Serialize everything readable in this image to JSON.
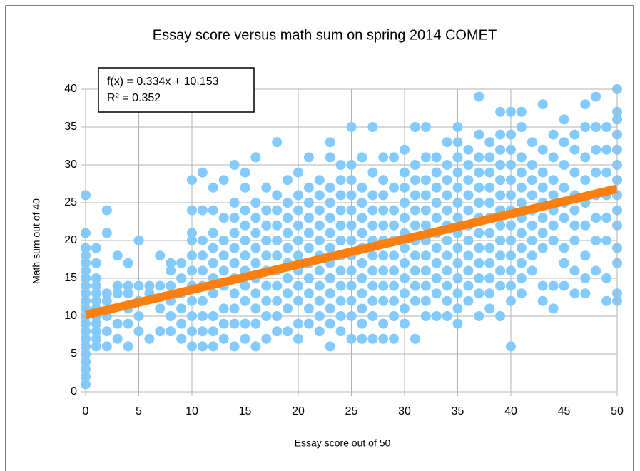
{
  "chart_data": {
    "type": "scatter",
    "title": "Essay score versus math sum on spring 2014 COMET",
    "x_label": "Essay score out of 50",
    "y_label": "Math sum out of 40",
    "annotations": [
      "f(x) = 0.334x + 10.153",
      "R² = 0.352"
    ],
    "xlim": [
      0,
      50
    ],
    "xticks": [
      0,
      5,
      10,
      15,
      20,
      25,
      30,
      35,
      40,
      45,
      50
    ],
    "ylim": [
      0,
      40
    ],
    "yticks": [
      0,
      5,
      10,
      15,
      20,
      25,
      30,
      35,
      40
    ],
    "grid": true,
    "series": [
      {
        "color": "#83caff",
        "x": [
          0,
          0,
          0,
          0,
          0,
          0,
          0,
          0,
          0,
          0,
          0,
          0,
          0,
          0,
          0,
          0,
          0,
          0,
          0,
          0,
          0,
          1,
          1,
          1,
          1,
          1,
          1,
          1,
          1,
          1,
          1,
          1,
          1,
          2,
          2,
          2,
          2,
          2,
          2,
          2,
          3,
          3,
          3,
          3,
          3,
          4,
          4,
          4,
          4,
          4,
          4,
          5,
          5,
          5,
          5,
          5,
          6,
          6,
          6,
          7,
          7,
          7,
          7,
          8,
          8,
          8,
          8,
          8,
          8,
          9,
          9,
          9,
          9,
          9,
          9,
          10,
          10,
          10,
          10,
          10,
          10,
          10,
          10,
          10,
          10,
          10,
          11,
          11,
          11,
          11,
          11,
          11,
          11,
          11,
          11,
          11,
          12,
          12,
          12,
          12,
          12,
          12,
          12,
          12,
          12,
          12,
          13,
          13,
          13,
          13,
          13,
          13,
          13,
          13,
          13,
          14,
          14,
          14,
          14,
          14,
          14,
          14,
          14,
          14,
          14,
          14,
          15,
          15,
          15,
          15,
          15,
          15,
          15,
          15,
          15,
          15,
          15,
          16,
          16,
          16,
          16,
          16,
          16,
          16,
          16,
          16,
          16,
          16,
          17,
          17,
          17,
          17,
          17,
          17,
          17,
          17,
          17,
          17,
          18,
          18,
          18,
          18,
          18,
          18,
          18,
          18,
          18,
          18,
          18,
          19,
          19,
          19,
          19,
          19,
          19,
          19,
          19,
          19,
          19,
          20,
          20,
          20,
          20,
          20,
          20,
          20,
          20,
          20,
          20,
          20,
          21,
          21,
          21,
          21,
          21,
          21,
          21,
          21,
          21,
          21,
          21,
          22,
          22,
          22,
          22,
          22,
          22,
          22,
          22,
          22,
          22,
          22,
          23,
          23,
          23,
          23,
          23,
          23,
          23,
          23,
          23,
          23,
          23,
          23,
          23,
          24,
          24,
          24,
          24,
          24,
          24,
          24,
          24,
          24,
          24,
          24,
          24,
          25,
          25,
          25,
          25,
          25,
          25,
          25,
          25,
          25,
          25,
          25,
          25,
          25,
          26,
          26,
          26,
          26,
          26,
          26,
          26,
          26,
          26,
          26,
          26,
          26,
          27,
          27,
          27,
          27,
          27,
          27,
          27,
          27,
          27,
          27,
          27,
          27,
          28,
          28,
          28,
          28,
          28,
          28,
          28,
          28,
          28,
          28,
          28,
          28,
          29,
          29,
          29,
          29,
          29,
          29,
          29,
          29,
          29,
          29,
          29,
          30,
          30,
          30,
          30,
          30,
          30,
          30,
          30,
          30,
          30,
          30,
          30,
          31,
          31,
          31,
          31,
          31,
          31,
          31,
          31,
          31,
          31,
          31,
          31,
          32,
          32,
          32,
          32,
          32,
          32,
          32,
          32,
          32,
          32,
          32,
          32,
          33,
          33,
          33,
          33,
          33,
          33,
          33,
          33,
          33,
          33,
          33,
          34,
          34,
          34,
          34,
          34,
          34,
          34,
          34,
          34,
          34,
          34,
          34,
          35,
          35,
          35,
          35,
          35,
          35,
          35,
          35,
          35,
          35,
          35,
          35,
          35,
          35,
          36,
          36,
          36,
          36,
          36,
          36,
          36,
          36,
          36,
          36,
          36,
          37,
          37,
          37,
          37,
          37,
          37,
          37,
          37,
          37,
          37,
          37,
          37,
          37,
          38,
          38,
          38,
          38,
          38,
          38,
          38,
          38,
          38,
          38,
          38,
          38,
          39,
          39,
          39,
          39,
          39,
          39,
          39,
          39,
          39,
          39,
          39,
          39,
          39,
          40,
          40,
          40,
          40,
          40,
          40,
          40,
          40,
          40,
          40,
          40,
          40,
          40,
          40,
          41,
          41,
          41,
          41,
          41,
          41,
          41,
          41,
          41,
          41,
          41,
          41,
          42,
          42,
          42,
          42,
          42,
          42,
          42,
          42,
          42,
          43,
          43,
          43,
          43,
          43,
          43,
          43,
          43,
          43,
          43,
          44,
          44,
          44,
          44,
          44,
          44,
          44,
          44,
          44,
          45,
          45,
          45,
          45,
          45,
          45,
          45,
          45,
          45,
          46,
          46,
          46,
          46,
          46,
          46,
          46,
          46,
          46,
          47,
          47,
          47,
          47,
          47,
          47,
          47,
          47,
          47,
          48,
          48,
          48,
          48,
          48,
          48,
          48,
          48,
          49,
          49,
          49,
          49,
          49,
          49,
          49,
          49,
          50,
          50,
          50,
          50,
          50,
          50,
          50,
          50,
          50,
          50,
          50,
          50,
          50,
          50
        ],
        "values": [
          1,
          2,
          3,
          4,
          5,
          6,
          7,
          8,
          9,
          10,
          11,
          12,
          13,
          14,
          15,
          16,
          17,
          18,
          19,
          21,
          26,
          6,
          7,
          8,
          9,
          10,
          11,
          12,
          13,
          14,
          15,
          17,
          19,
          6,
          8,
          10,
          12,
          13,
          21,
          24,
          7,
          9,
          13,
          14,
          18,
          6,
          9,
          11,
          13,
          14,
          17,
          8,
          10,
          12,
          14,
          20,
          7,
          13,
          14,
          8,
          11,
          14,
          18,
          8,
          10,
          12,
          14,
          16,
          17,
          7,
          9,
          11,
          13,
          15,
          17,
          6,
          8,
          10,
          12,
          14,
          16,
          18,
          20,
          21,
          24,
          28,
          6,
          8,
          10,
          12,
          14,
          16,
          18,
          20,
          24,
          29,
          6,
          8,
          10,
          13,
          15,
          17,
          19,
          21,
          24,
          27,
          7,
          9,
          11,
          14,
          16,
          18,
          20,
          23,
          28,
          6,
          9,
          11,
          13,
          15,
          17,
          19,
          21,
          23,
          25,
          30,
          7,
          9,
          12,
          14,
          16,
          18,
          20,
          22,
          24,
          27,
          29,
          6,
          9,
          11,
          13,
          15,
          17,
          19,
          21,
          23,
          25,
          31,
          7,
          10,
          12,
          14,
          16,
          18,
          20,
          22,
          24,
          27,
          8,
          10,
          12,
          14,
          16,
          18,
          20,
          22,
          24,
          26,
          33,
          8,
          11,
          13,
          15,
          17,
          19,
          21,
          23,
          25,
          28,
          7,
          9,
          12,
          14,
          16,
          18,
          20,
          22,
          24,
          26,
          29,
          9,
          11,
          13,
          15,
          17,
          19,
          21,
          23,
          25,
          27,
          31,
          8,
          10,
          12,
          14,
          16,
          18,
          20,
          22,
          24,
          26,
          28,
          6,
          9,
          11,
          13,
          15,
          17,
          19,
          21,
          23,
          25,
          27,
          31,
          33,
          8,
          10,
          12,
          14,
          16,
          18,
          20,
          22,
          24,
          26,
          28,
          30,
          7,
          10,
          12,
          14,
          16,
          18,
          20,
          22,
          24,
          26,
          28,
          30,
          35,
          7,
          9,
          11,
          13,
          15,
          17,
          19,
          21,
          23,
          25,
          27,
          31,
          7,
          10,
          12,
          14,
          16,
          18,
          20,
          22,
          24,
          26,
          29,
          35,
          7,
          9,
          12,
          14,
          16,
          18,
          20,
          22,
          24,
          26,
          28,
          31,
          7,
          10,
          12,
          14,
          16,
          18,
          20,
          22,
          24,
          27,
          31,
          9,
          11,
          13,
          15,
          17,
          19,
          21,
          23,
          25,
          27,
          29,
          32,
          7,
          12,
          14,
          16,
          18,
          20,
          22,
          24,
          26,
          28,
          30,
          35,
          10,
          12,
          14,
          16,
          18,
          20,
          22,
          24,
          26,
          28,
          31,
          35,
          10,
          13,
          15,
          17,
          19,
          21,
          23,
          25,
          27,
          29,
          31,
          10,
          12,
          14,
          16,
          18,
          20,
          22,
          24,
          26,
          28,
          30,
          33,
          9,
          11,
          13,
          15,
          17,
          19,
          21,
          23,
          25,
          27,
          29,
          31,
          33,
          35,
          12,
          14,
          16,
          18,
          20,
          22,
          24,
          26,
          28,
          30,
          32,
          10,
          13,
          15,
          17,
          19,
          21,
          23,
          25,
          27,
          29,
          31,
          34,
          39,
          11,
          13,
          15,
          17,
          19,
          21,
          23,
          25,
          27,
          29,
          31,
          33,
          10,
          14,
          16,
          18,
          20,
          22,
          24,
          26,
          28,
          30,
          32,
          34,
          37,
          6,
          12,
          14,
          16,
          18,
          20,
          22,
          24,
          26,
          28,
          30,
          32,
          34,
          37,
          13,
          15,
          17,
          19,
          21,
          23,
          25,
          27,
          29,
          31,
          35,
          37,
          16,
          18,
          20,
          22,
          24,
          26,
          28,
          30,
          33,
          12,
          14,
          19,
          21,
          23,
          25,
          27,
          29,
          32,
          38,
          11,
          14,
          20,
          22,
          24,
          26,
          28,
          31,
          34,
          14,
          17,
          19,
          23,
          25,
          27,
          30,
          33,
          36,
          13,
          16,
          20,
          22,
          24,
          26,
          29,
          32,
          34,
          13,
          15,
          18,
          22,
          25,
          28,
          31,
          35,
          38,
          16,
          20,
          23,
          26,
          29,
          32,
          35,
          39,
          12,
          15,
          20,
          23,
          26,
          29,
          32,
          35,
          12,
          13,
          17,
          19,
          22,
          24,
          26,
          28,
          30,
          32,
          34,
          36,
          37,
          40
        ]
      }
    ],
    "trendline": {
      "color": "#ff7f0e",
      "x": [
        0,
        50
      ],
      "values": [
        10.153,
        26.853
      ]
    }
  }
}
